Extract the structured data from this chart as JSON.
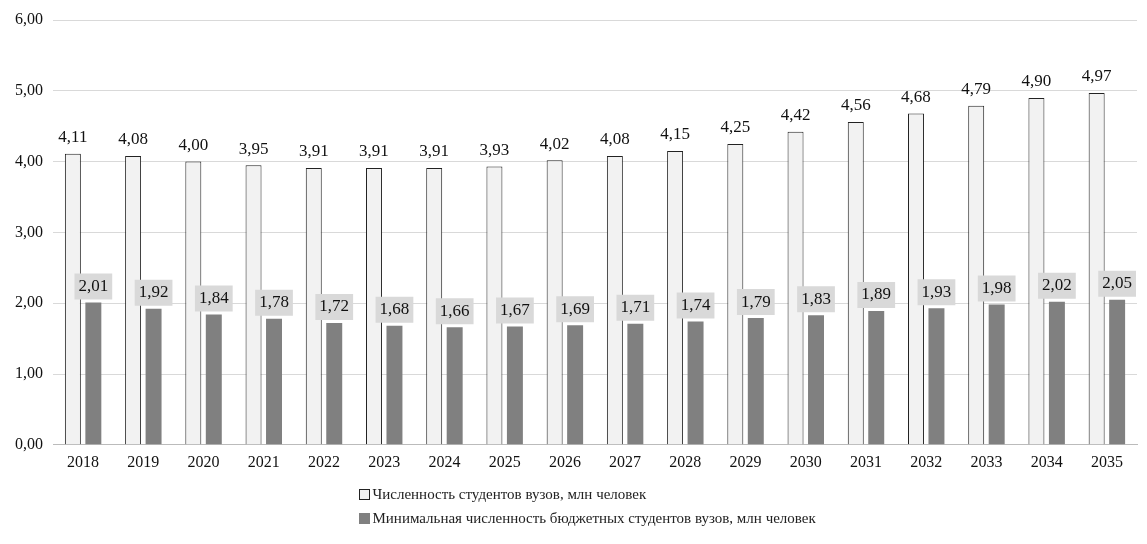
{
  "chart_data": {
    "type": "bar",
    "categories": [
      "2018",
      "2019",
      "2020",
      "2021",
      "2022",
      "2023",
      "2024",
      "2025",
      "2026",
      "2027",
      "2028",
      "2029",
      "2030",
      "2031",
      "2032",
      "2033",
      "2034",
      "2035"
    ],
    "series": [
      {
        "name": "Численность студентов вузов, млн человек",
        "color": "#f2f2f2",
        "values": [
          4.11,
          4.08,
          4.0,
          3.95,
          3.91,
          3.91,
          3.91,
          3.93,
          4.02,
          4.08,
          4.15,
          4.25,
          4.42,
          4.56,
          4.68,
          4.79,
          4.9,
          4.97
        ],
        "value_labels": [
          "4,11",
          "4,08",
          "4,00",
          "3,95",
          "3,91",
          "3,91",
          "3,91",
          "3,93",
          "4,02",
          "4,08",
          "4,15",
          "4,25",
          "4,42",
          "4,56",
          "4,68",
          "4,79",
          "4,90",
          "4,97"
        ]
      },
      {
        "name": "Минимальная численность бюджетных студентов вузов, млн человек",
        "color": "#808080",
        "values": [
          2.01,
          1.92,
          1.84,
          1.78,
          1.72,
          1.68,
          1.66,
          1.67,
          1.69,
          1.71,
          1.74,
          1.79,
          1.83,
          1.89,
          1.93,
          1.98,
          2.02,
          2.05
        ],
        "value_labels": [
          "2,01",
          "1,92",
          "1,84",
          "1,78",
          "1,72",
          "1,68",
          "1,66",
          "1,67",
          "1,69",
          "1,71",
          "1,74",
          "1,79",
          "1,83",
          "1,89",
          "1,93",
          "1,98",
          "2,02",
          "2,05"
        ]
      }
    ],
    "ylim": [
      0,
      6
    ],
    "yticks": [
      {
        "value": 0,
        "label": "0,00"
      },
      {
        "value": 1,
        "label": "1,00"
      },
      {
        "value": 2,
        "label": "2,00"
      },
      {
        "value": 3,
        "label": "3,00"
      },
      {
        "value": 4,
        "label": "4,00"
      },
      {
        "value": 5,
        "label": "5,00"
      },
      {
        "value": 6,
        "label": "6,00"
      }
    ],
    "grid": "y",
    "legend": "bottom"
  }
}
